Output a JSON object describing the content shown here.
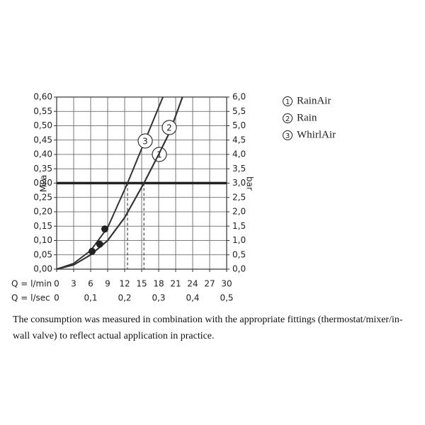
{
  "chart_data": {
    "type": "line",
    "ylabel": "MPa",
    "y2label": "bar",
    "x_label": "Q = l/min",
    "x2_label": "Q = l/sec",
    "xlim": [
      0,
      30
    ],
    "xticks": [
      0,
      3,
      6,
      9,
      12,
      15,
      18,
      21,
      24,
      27,
      30
    ],
    "x2ticks": [
      0,
      {
        "value": 0.1,
        "label": "0,1"
      },
      {
        "value": 0.2,
        "label": "0,2"
      },
      {
        "value": 0.3,
        "label": "0,3"
      },
      {
        "value": 0.4,
        "label": "0,4"
      },
      {
        "value": 0.5,
        "label": "0,5"
      }
    ],
    "x2_per_x": 60,
    "ylim": [
      0,
      0.6
    ],
    "yticks": [
      {
        "value": 0,
        "label": "0,00"
      },
      {
        "value": 0.05,
        "label": "0,05"
      },
      {
        "value": 0.1,
        "label": "0,10"
      },
      {
        "value": 0.15,
        "label": "0,15"
      },
      {
        "value": 0.2,
        "label": "0,20"
      },
      {
        "value": 0.25,
        "label": "0,25"
      },
      {
        "value": 0.3,
        "label": "0,30"
      },
      {
        "value": 0.35,
        "label": "0,35"
      },
      {
        "value": 0.4,
        "label": "0,40"
      },
      {
        "value": 0.45,
        "label": "0,45"
      },
      {
        "value": 0.5,
        "label": "0,50"
      },
      {
        "value": 0.55,
        "label": "0,55"
      },
      {
        "value": 0.6,
        "label": "0,60"
      }
    ],
    "y2lim": [
      0,
      6
    ],
    "y2ticks": [
      {
        "value": 0,
        "label": "0,0"
      },
      {
        "value": 0.5,
        "label": "0,5"
      },
      {
        "value": 1,
        "label": "1,0"
      },
      {
        "value": 1.5,
        "label": "1,5"
      },
      {
        "value": 2,
        "label": "2,0"
      },
      {
        "value": 2.5,
        "label": "2,5"
      },
      {
        "value": 3,
        "label": "3,0"
      },
      {
        "value": 3.5,
        "label": "3,5"
      },
      {
        "value": 4,
        "label": "4,0"
      },
      {
        "value": 4.5,
        "label": "4,5"
      },
      {
        "value": 5,
        "label": "5,0"
      },
      {
        "value": 5.5,
        "label": "5,5"
      },
      {
        "value": 6,
        "label": "6,0"
      }
    ],
    "grid": true,
    "reference_line": 0.3,
    "dashed_x": [
      12.5,
      15.4
    ],
    "series": [
      {
        "name": "RainAir",
        "marker": "1",
        "color": "#333333",
        "x": [
          0,
          3,
          6,
          9,
          12,
          15.4,
          18,
          20,
          22.2
        ],
        "values": [
          0,
          0.015,
          0.05,
          0.1,
          0.18,
          0.3,
          0.4,
          0.48,
          0.6
        ]
      },
      {
        "name": "Rain",
        "marker": "2",
        "color": "#333333",
        "x": [
          0,
          3,
          6,
          9,
          12,
          15.4,
          18,
          20,
          22.2
        ],
        "values": [
          0,
          0.015,
          0.05,
          0.1,
          0.18,
          0.3,
          0.4,
          0.48,
          0.6
        ]
      },
      {
        "name": "WhirlAir",
        "marker": "3",
        "color": "#333333",
        "x": [
          0,
          3,
          6,
          9,
          12.5,
          15,
          18.75
        ],
        "values": [
          0,
          0.02,
          0.065,
          0.145,
          0.3,
          0.42,
          0.6
        ]
      }
    ],
    "points": {
      "x": [
        6.25,
        7.6,
        8.5
      ],
      "y": [
        0.062,
        0.087,
        0.14
      ]
    },
    "caption": "The consumption was measured in combination with the appropriate fittings (thermostat/mixer/in-wall valve) to reflect actual application in practice."
  }
}
